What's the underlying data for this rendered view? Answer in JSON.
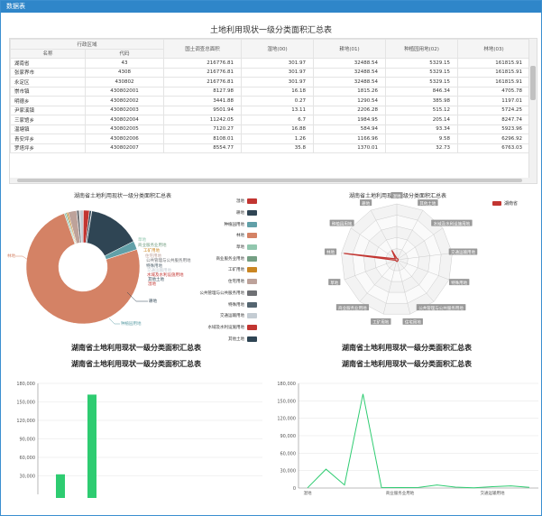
{
  "window": {
    "title": "数据表"
  },
  "report": {
    "title": "土地利用现状一级分类面积汇总表",
    "headers": {
      "group": "行政区域",
      "name": "名称",
      "code": "代码",
      "total": "国土调查总面积",
      "c00": "湿地(00)",
      "c01": "耕地(01)",
      "c02": "种植园用地(02)",
      "c03": "林地(03)"
    },
    "rows": [
      {
        "name": "湖南省",
        "code": "43",
        "total": "216776.81",
        "c00": "301.97",
        "c01": "32488.54",
        "c02": "5329.15",
        "c03": "161815.91"
      },
      {
        "name": "张家界市",
        "code": "4308",
        "total": "216776.81",
        "c00": "301.97",
        "c01": "32488.54",
        "c02": "5329.15",
        "c03": "161815.91"
      },
      {
        "name": "永定区",
        "code": "430802",
        "total": "216776.81",
        "c00": "301.97",
        "c01": "32488.54",
        "c02": "5329.15",
        "c03": "161815.91"
      },
      {
        "name": "崇市镇",
        "code": "430802001",
        "total": "8127.98",
        "c00": "16.18",
        "c01": "1815.26",
        "c02": "846.34",
        "c03": "4705.78"
      },
      {
        "name": "明德乡",
        "code": "430802002",
        "total": "3441.88",
        "c00": "0.27",
        "c01": "1290.54",
        "c02": "385.98",
        "c03": "1197.01"
      },
      {
        "name": "尹家溪镇",
        "code": "430802003",
        "total": "9501.94",
        "c00": "13.11",
        "c01": "2206.28",
        "c02": "515.12",
        "c03": "5724.25"
      },
      {
        "name": "三家馆乡",
        "code": "430802004",
        "total": "11242.05",
        "c00": "6.7",
        "c01": "1984.95",
        "c02": "205.14",
        "c03": "8247.74"
      },
      {
        "name": "温塘镇",
        "code": "430802005",
        "total": "7120.27",
        "c00": "16.88",
        "c01": "584.94",
        "c02": "93.34",
        "c03": "5923.96"
      },
      {
        "name": "青安坪乡",
        "code": "430802006",
        "total": "8108.01",
        "c00": "1.26",
        "c01": "1166.96",
        "c02": "9.58",
        "c03": "6296.92"
      },
      {
        "name": "罗塔坪乡",
        "code": "430802007",
        "total": "8554.77",
        "c00": "35.8",
        "c01": "1370.01",
        "c02": "32.73",
        "c03": "6763.03"
      }
    ]
  },
  "donut_panel": {
    "title": "湖南省土地利用现状一级分类面积汇总表",
    "legend": [
      "湿地",
      "耕地",
      "种植园用地",
      "林地",
      "草地",
      "商业服务业用地",
      "工矿用地",
      "住宅用地",
      "公共管理与公共服务用地",
      "特殊用地",
      "交通运输用地",
      "水域及水利设施用地",
      "其他土地"
    ],
    "legend_colors": [
      "#c23531",
      "#2f4554",
      "#61a0a8",
      "#d48265",
      "#91c7ae",
      "#749f83",
      "#ca8622",
      "#bda29a",
      "#6e7074",
      "#546570",
      "#c4ccd3",
      "#c23531",
      "#2f4554"
    ],
    "callouts": {
      "linear": "林地",
      "plow": "耕地",
      "orchard": "种植园用地",
      "grass": "草地",
      "biz": "商业服务业用地",
      "mine": "工矿用地",
      "house": "住宅用地",
      "public": "公共管理与公共服务用地",
      "special": "特殊用地",
      "traffic": "交通运输用地",
      "water": "水域及水利设施用地",
      "other": "其他土地",
      "wet": "湿地"
    }
  },
  "radar_panel": {
    "title": "湖南省土地利用现状一级分类面积汇总表",
    "legend_label": "湖南省",
    "legend_color": "#c23531",
    "indicators": [
      "湿地",
      "其他土地",
      "水域及水利设施用地",
      "交通运输用地",
      "特殊用地",
      "公共管理与公共服务用地",
      "住宅用地",
      "工矿用地",
      "商业服务业用地",
      "草地",
      "林地",
      "种植园用地",
      "耕地"
    ]
  },
  "bar_panel": {
    "title1": "湖南省土地利用现状一级分类面积汇总表",
    "title2": "湖南省土地利用现状一级分类面积汇总表",
    "y_ticks": [
      "180,000",
      "150,000",
      "120,000",
      "90,000",
      "60,000",
      "30,000"
    ]
  },
  "line_panel": {
    "title1": "湖南省土地利用现状一级分类面积汇总表",
    "title2": "湖南省土地利用现状一级分类面积汇总表",
    "y_ticks": [
      "180,000",
      "150,000",
      "120,000",
      "90,000",
      "60,000",
      "30,000",
      "0"
    ],
    "x_labels": [
      "湿地",
      "商业服务业用地",
      "交通运输用地"
    ]
  },
  "chart_data": [
    {
      "type": "pie",
      "title": "湖南省土地利用现状一级分类面积汇总表",
      "categories": [
        "湿地",
        "耕地",
        "种植园用地",
        "林地",
        "草地",
        "商业服务业用地",
        "工矿用地",
        "住宅用地",
        "公共管理与公共服务用地",
        "特殊用地",
        "交通运输用地",
        "水域及水利设施用地",
        "其他土地"
      ],
      "values": [
        301.97,
        32488.54,
        5329.15,
        161815.91,
        900,
        700,
        900,
        5200,
        1600,
        300,
        2300,
        3700,
        1200
      ]
    },
    {
      "type": "bar",
      "title": "湖南省土地利用现状一级分类面积汇总表",
      "categories": [
        "湿地",
        "耕地",
        "种植园用地",
        "林地"
      ],
      "values": [
        301.97,
        32488.54,
        5329.15,
        161815.91
      ],
      "ylim": [
        0,
        180000
      ]
    },
    {
      "type": "line",
      "title": "湖南省土地利用现状一级分类面积汇总表",
      "categories": [
        "湿地",
        "耕地",
        "种植园用地",
        "林地",
        "草地",
        "商业服务业用地",
        "工矿用地",
        "住宅用地",
        "公共管理与公共服务用地",
        "特殊用地",
        "交通运输用地",
        "水域及水利设施用地",
        "其他土地"
      ],
      "values": [
        301.97,
        32488.54,
        5329.15,
        161815.91,
        900,
        700,
        900,
        5200,
        1600,
        300,
        2300,
        3700,
        1200
      ],
      "ylim": [
        0,
        180000
      ]
    }
  ]
}
